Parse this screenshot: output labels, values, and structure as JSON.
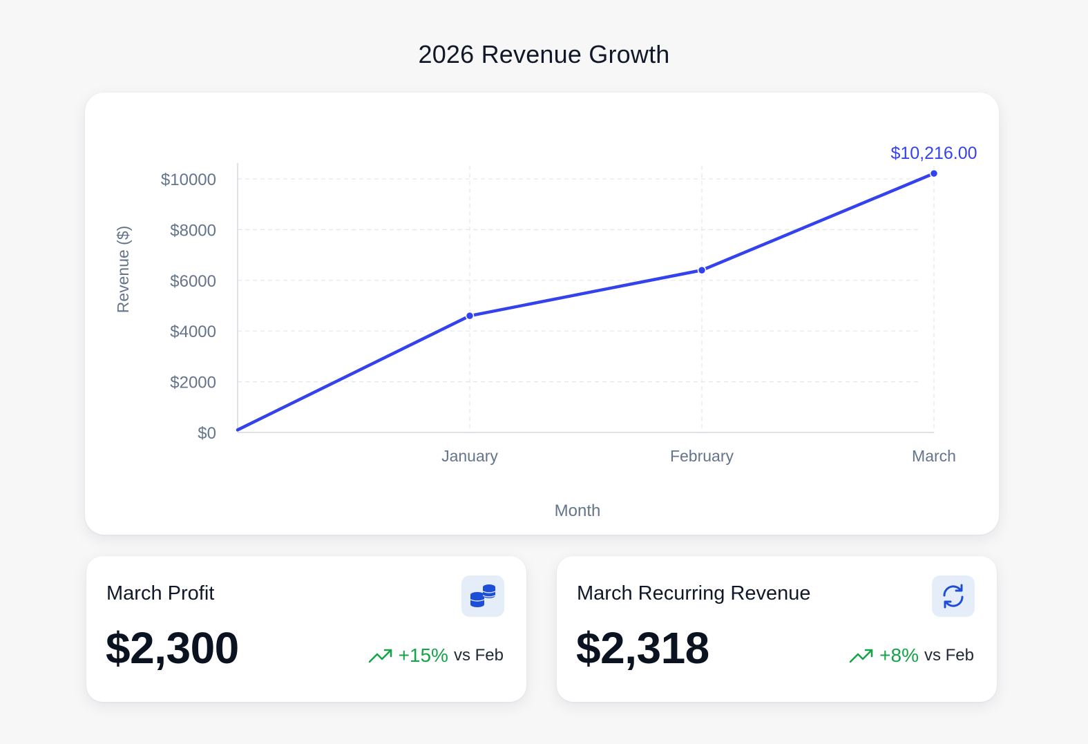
{
  "page": {
    "title": "2026 Revenue Growth"
  },
  "chart_data": {
    "type": "line",
    "title": "2026 Revenue Growth",
    "xlabel": "Month",
    "ylabel": "Revenue ($)",
    "x": [
      "",
      "January",
      "February",
      "March"
    ],
    "series": [
      {
        "values": [
          100,
          4600,
          6400,
          10216
        ]
      }
    ],
    "ylim": [
      0,
      10000
    ],
    "yticks": [
      0,
      2000,
      4000,
      6000,
      8000,
      10000
    ],
    "ytick_labels": [
      "$0",
      "$2000",
      "$4000",
      "$6000",
      "$8000",
      "$10000"
    ],
    "annotation": {
      "x": "March",
      "text": "$10,216.00"
    },
    "grid": true,
    "line_color": "#3442ee"
  },
  "stats": [
    {
      "label": "March Profit",
      "value": "$2,300",
      "change": "+15%",
      "comparison": "vs Feb",
      "icon": "coins-icon"
    },
    {
      "label": "March Recurring Revenue",
      "value": "$2,318",
      "change": "+8%",
      "comparison": "vs Feb",
      "icon": "refresh-icon"
    }
  ],
  "colors": {
    "accent": "#3442ee",
    "positive": "#16a34a",
    "icon_blue": "#1d4ed8",
    "icon_bg": "#e5edf9"
  }
}
